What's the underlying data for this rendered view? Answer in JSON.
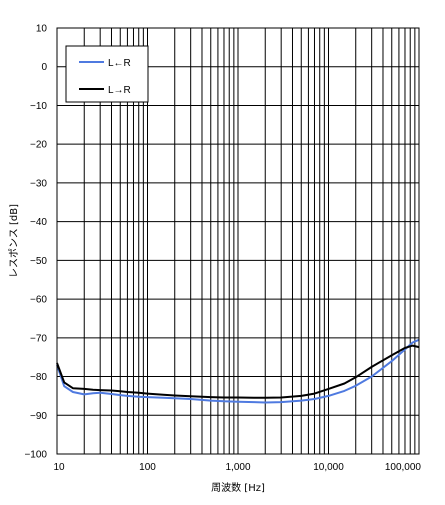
{
  "chart_data": {
    "type": "line",
    "xlabel": "周波数 [Hz]",
    "ylabel": "レスポンス [dB]",
    "x_scale": "log",
    "xlim": [
      10,
      100000
    ],
    "ylim": [
      -100,
      10
    ],
    "grid": true,
    "legend_position": "top-left",
    "x_tick_labels": [
      "10",
      "100",
      "1,000",
      "10,000",
      "100,000"
    ],
    "y_tick_labels": [
      "10",
      "0",
      "−10",
      "−20",
      "−30",
      "−40",
      "−50",
      "−60",
      "−70",
      "−80",
      "−90",
      "−100"
    ],
    "series": [
      {
        "name": "L←R",
        "color": "#4f7ae0",
        "x": [
          10,
          12,
          15,
          20,
          25,
          30,
          40,
          50,
          60,
          80,
          100,
          150,
          200,
          300,
          500,
          700,
          1000,
          1500,
          2000,
          3000,
          5000,
          7000,
          10000,
          15000,
          20000,
          30000,
          50000,
          70000,
          85000,
          100000
        ],
        "y": [
          -77,
          -82.5,
          -84,
          -84.6,
          -84.3,
          -84.2,
          -84.5,
          -84.8,
          -85,
          -85.2,
          -85.3,
          -85.5,
          -85.6,
          -85.8,
          -86.2,
          -86.4,
          -86.5,
          -86.6,
          -86.7,
          -86.6,
          -86.2,
          -85.8,
          -85,
          -83.7,
          -82.4,
          -80,
          -76,
          -73,
          -71.2,
          -70.5
        ]
      },
      {
        "name": "L→R",
        "color": "#000000",
        "x": [
          10,
          12,
          15,
          20,
          25,
          30,
          40,
          50,
          60,
          80,
          100,
          150,
          200,
          300,
          500,
          700,
          1000,
          1500,
          2000,
          3000,
          5000,
          7000,
          10000,
          15000,
          20000,
          30000,
          50000,
          70000,
          85000,
          100000
        ],
        "y": [
          -76.5,
          -81.5,
          -83,
          -83.2,
          -83.4,
          -83.5,
          -83.6,
          -83.8,
          -84,
          -84.2,
          -84.4,
          -84.7,
          -84.9,
          -85.1,
          -85.3,
          -85.4,
          -85.4,
          -85.5,
          -85.5,
          -85.4,
          -85,
          -84.4,
          -83.2,
          -81.8,
          -80.2,
          -77.5,
          -74.5,
          -72.6,
          -72,
          -72.4
        ]
      }
    ]
  }
}
